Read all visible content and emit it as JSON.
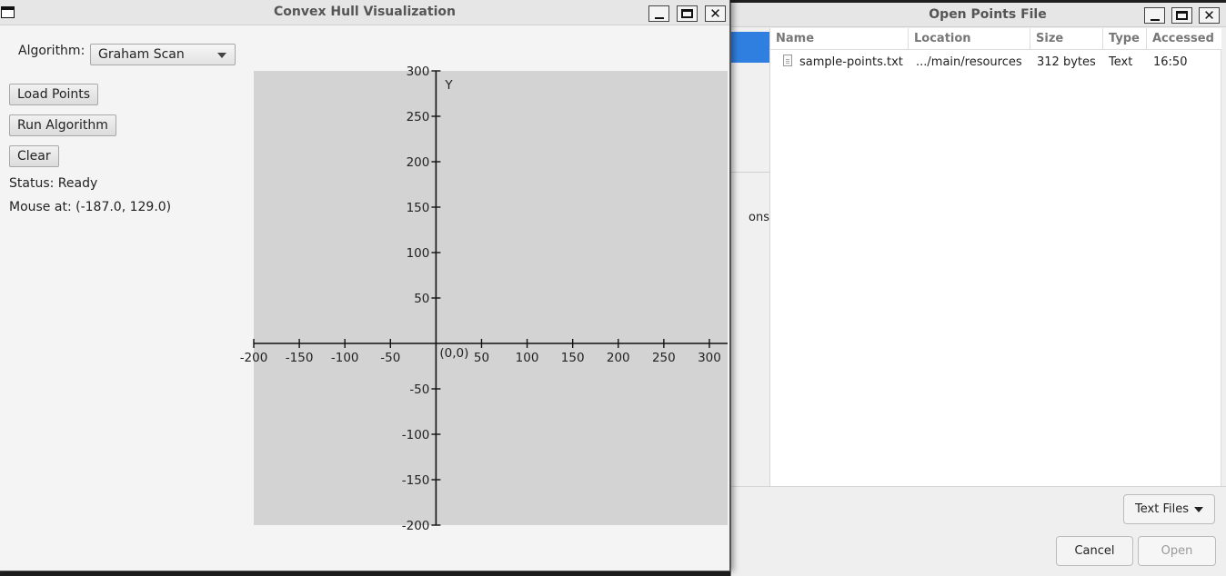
{
  "dialog": {
    "title": "Open Points File",
    "sidebar_cut_label": "ons",
    "columns": [
      {
        "label": "Name"
      },
      {
        "label": "Location"
      },
      {
        "label": "Size"
      },
      {
        "label": "Type"
      },
      {
        "label": "Accessed"
      }
    ],
    "files": [
      {
        "name": "sample-points.txt",
        "location": ".../main/resources",
        "size": "312 bytes",
        "type": "Text",
        "accessed": "16:50"
      }
    ],
    "filter_label": "Text Files",
    "cancel_label": "Cancel",
    "open_label": "Open"
  },
  "main": {
    "title": "Convex Hull Visualization",
    "algorithm_label": "Algorithm:",
    "algorithm_value": "Graham Scan",
    "load_label": "Load Points",
    "run_label": "Run Algorithm",
    "clear_label": "Clear",
    "status_text": "Status: Ready",
    "mouse_text": "Mouse at: (-187.0, 129.0)"
  },
  "plot": {
    "y_axis_label": "Y",
    "origin_label": "(0,0)",
    "origin_color": "#0000dd",
    "x_range": [
      -200,
      320
    ],
    "y_range": [
      -200,
      300
    ],
    "x_ticks": [
      -200,
      -150,
      -100,
      -50,
      50,
      100,
      150,
      200,
      250,
      300
    ],
    "y_ticks": [
      300,
      250,
      200,
      150,
      100,
      50,
      -50,
      -100,
      -150,
      -200
    ]
  }
}
